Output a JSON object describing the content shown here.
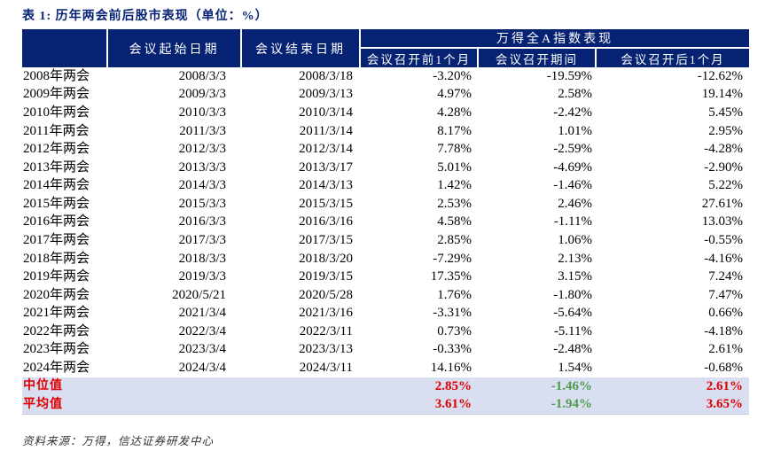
{
  "title": "表 1: 历年两会前后股市表现（单位：%）",
  "palette": {
    "header_bg": "#052372",
    "title_color": "#052372",
    "summary_bg": "#d9def0",
    "up_color": "#e00000",
    "down_color": "#4e9c4e"
  },
  "table": {
    "header": {
      "start_date": "会议起始日期",
      "end_date": "会议结束日期",
      "index_group": "万得全A指数表现",
      "sub": [
        "会议召开前1个月",
        "会议召开期间",
        "会议召开后1个月"
      ]
    },
    "rows": [
      [
        "2008年两会",
        "2008/3/3",
        "2008/3/18",
        "-3.20%",
        "-19.59%",
        "-12.62%"
      ],
      [
        "2009年两会",
        "2009/3/3",
        "2009/3/13",
        "4.97%",
        "2.58%",
        "19.14%"
      ],
      [
        "2010年两会",
        "2010/3/3",
        "2010/3/14",
        "4.28%",
        "-2.42%",
        "5.45%"
      ],
      [
        "2011年两会",
        "2011/3/3",
        "2011/3/14",
        "8.17%",
        "1.01%",
        "2.95%"
      ],
      [
        "2012年两会",
        "2012/3/3",
        "2012/3/14",
        "7.78%",
        "-2.59%",
        "-4.28%"
      ],
      [
        "2013年两会",
        "2013/3/3",
        "2013/3/17",
        "5.01%",
        "-4.69%",
        "-2.90%"
      ],
      [
        "2014年两会",
        "2014/3/3",
        "2014/3/13",
        "1.42%",
        "-1.46%",
        "5.22%"
      ],
      [
        "2015年两会",
        "2015/3/3",
        "2015/3/15",
        "2.53%",
        "2.46%",
        "27.61%"
      ],
      [
        "2016年两会",
        "2016/3/3",
        "2016/3/16",
        "4.58%",
        "-1.11%",
        "13.03%"
      ],
      [
        "2017年两会",
        "2017/3/3",
        "2017/3/15",
        "2.85%",
        "1.06%",
        "-0.55%"
      ],
      [
        "2018年两会",
        "2018/3/3",
        "2018/3/20",
        "-7.29%",
        "2.13%",
        "-4.16%"
      ],
      [
        "2019年两会",
        "2019/3/3",
        "2019/3/15",
        "17.35%",
        "3.15%",
        "7.24%"
      ],
      [
        "2020年两会",
        "2020/5/21",
        "2020/5/28",
        "1.76%",
        "-1.80%",
        "7.47%"
      ],
      [
        "2021年两会",
        "2021/3/4",
        "2021/3/16",
        "-3.31%",
        "-5.64%",
        "0.66%"
      ],
      [
        "2022年两会",
        "2022/3/4",
        "2022/3/11",
        "0.73%",
        "-5.11%",
        "-4.18%"
      ],
      [
        "2023年两会",
        "2023/3/4",
        "2023/3/13",
        "-0.33%",
        "-2.48%",
        "2.61%"
      ],
      [
        "2024年两会",
        "2024/3/4",
        "2024/3/11",
        "14.16%",
        "1.54%",
        "-0.68%"
      ]
    ],
    "summary": [
      {
        "label": "中位值",
        "values": [
          "2.85%",
          "-1.46%",
          "2.61%"
        ]
      },
      {
        "label": "平均值",
        "values": [
          "3.61%",
          "-1.94%",
          "3.65%"
        ]
      }
    ]
  },
  "source": "资料来源：万得，信达证券研发中心"
}
